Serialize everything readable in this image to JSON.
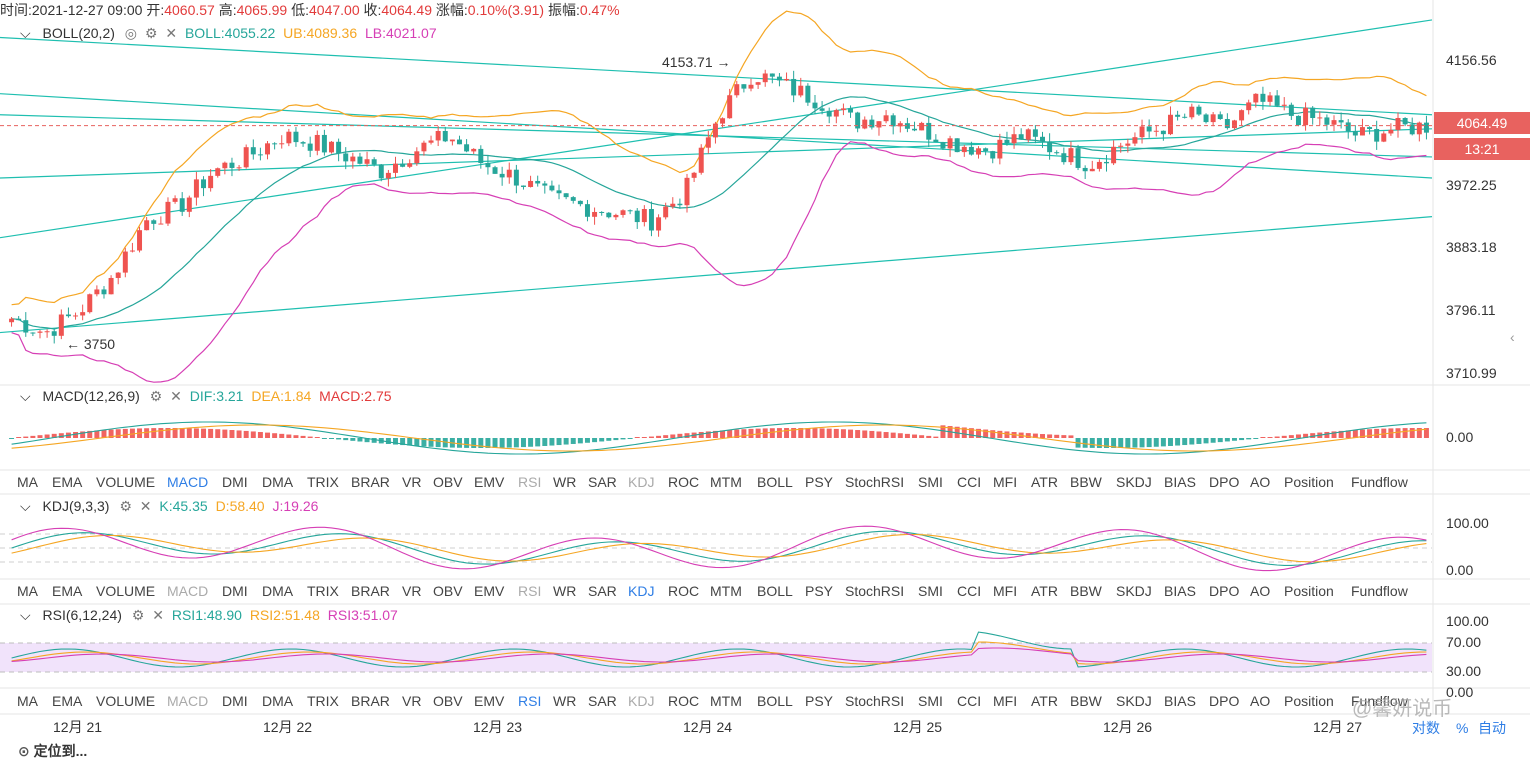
{
  "header": {
    "time": "时间:2021-12-27 09:00",
    "open_k": "开:",
    "open_v": "4060.57",
    "high_k": "高:",
    "high_v": "4065.99",
    "low_k": "低:",
    "low_v": "4047.00",
    "close_k": "收:",
    "close_v": "4064.49",
    "chg_k": "涨幅:",
    "chg_v": "0.10%(3.91)",
    "amp_k": "振幅:",
    "amp_v": "0.47%"
  },
  "boll": {
    "name": "BOLL(20,2)",
    "mid": "BOLL:4055.22",
    "ub": "UB:4089.36",
    "lb": "LB:4021.07"
  },
  "macd": {
    "name": "MACD(12,26,9)",
    "dif": "DIF:3.21",
    "dea": "DEA:1.84",
    "macd": "MACD:2.75"
  },
  "kdj": {
    "name": "KDJ(9,3,3)",
    "k": "K:45.35",
    "d": "D:58.40",
    "j": "J:19.26"
  },
  "rsi": {
    "name": "RSI(6,12,24)",
    "r1": "RSI1:48.90",
    "r2": "RSI2:51.48",
    "r3": "RSI3:51.07"
  },
  "price_axis": [
    "4156.56",
    "3972.25",
    "3883.18",
    "3796.11",
    "3710.99"
  ],
  "price_tag": "4064.49",
  "time_tag": "13:21",
  "macd_axis": [
    "0.00"
  ],
  "kdj_axis": [
    "100.00",
    "0.00"
  ],
  "rsi_axis": [
    "100.00",
    "70.00",
    "30.00",
    "0.00"
  ],
  "high_mark": "4153.71 →",
  "low_mark": "← 3750",
  "date_axis": [
    "12月 21",
    "12月 22",
    "12月 23",
    "12月 24",
    "12月 25",
    "12月 26",
    "12月 27"
  ],
  "indicator_tabs": [
    "MA",
    "EMA",
    "VOLUME",
    "MACD",
    "DMI",
    "DMA",
    "TRIX",
    "BRAR",
    "VR",
    "OBV",
    "EMV",
    "RSI",
    "WR",
    "SAR",
    "KDJ",
    "ROC",
    "MTM",
    "BOLL",
    "PSY",
    "StochRSI",
    "SMI",
    "CCI",
    "MFI",
    "ATR",
    "BBW",
    "SKDJ",
    "BIAS",
    "DPO",
    "AO",
    "Position",
    "Fundflow"
  ],
  "bottom_controls": {
    "log": "对数",
    "pct": "%",
    "auto": "自动"
  },
  "locate_label": "定位到...",
  "watermark": "@馨妍说币",
  "colors": {
    "up": "#ef5350",
    "down": "#26a69a",
    "boll_mid": "#26a69a",
    "boll_ub": "#f5a623",
    "boll_lb": "#d63fb5",
    "trend": "#1fbfb0",
    "tag": "#e8625f",
    "accent": "#2f7ee5"
  },
  "chart_data": {
    "type": "candlestick",
    "title": "",
    "x": [
      "12月 21",
      "12月 22",
      "12月 23",
      "12月 24",
      "12月 25",
      "12月 26",
      "12月 27"
    ],
    "close_series": [
      3790,
      3770,
      3800,
      3850,
      3930,
      3950,
      4000,
      4020,
      4050,
      4040,
      4020,
      4000,
      4030,
      4050,
      4010,
      3990,
      3960,
      3950,
      3940,
      3930,
      3970,
      4080,
      4140,
      4120,
      4100,
      4070,
      4080,
      4060,
      4040,
      4030,
      4050,
      4030,
      4010,
      4040,
      4060,
      4080,
      4060,
      4100,
      4080,
      4070,
      4050,
      4060,
      4064.49
    ],
    "ylim": [
      3690,
      4200
    ]
  }
}
